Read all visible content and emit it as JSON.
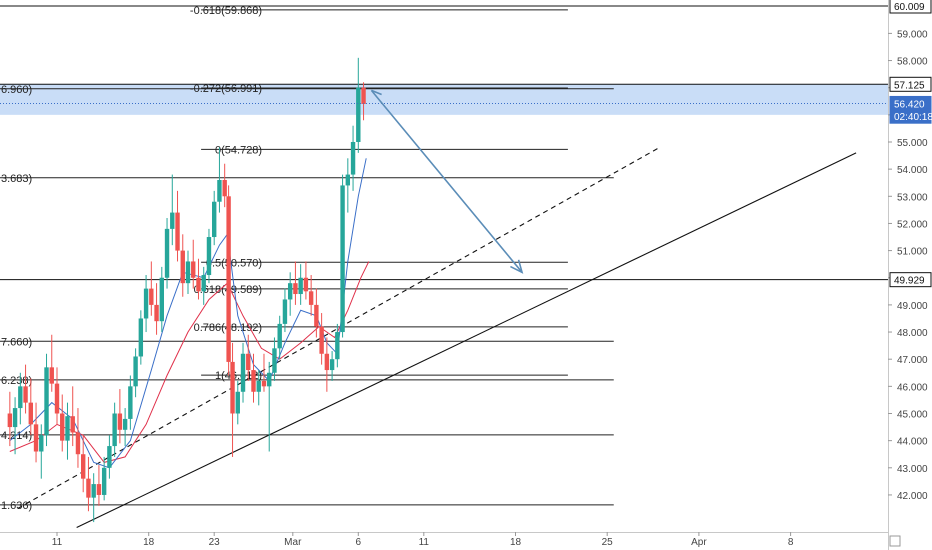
{
  "chart_data": {
    "type": "candlestick",
    "ylim": [
      40.8,
      60.5
    ],
    "y_ticks": [
      "60.009",
      "59.000",
      "58.000",
      "57.000",
      "56.000",
      "55.000",
      "54.000",
      "53.000",
      "52.000",
      "51.000",
      "50.000",
      "49.000",
      "48.000",
      "47.000",
      "46.000",
      "45.000",
      "44.000",
      "43.000",
      "42.000"
    ],
    "x_ticks": [
      {
        "label": "11",
        "day": 11
      },
      {
        "label": "18",
        "day": 18
      },
      {
        "label": "23",
        "day": 23
      },
      {
        "label": "Mar",
        "day": 29
      },
      {
        "label": "6",
        "day": 34
      },
      {
        "label": "11",
        "day": 39
      },
      {
        "label": "18",
        "day": 46
      },
      {
        "label": "25",
        "day": 53
      },
      {
        "label": "Apr",
        "day": 60
      },
      {
        "label": "8",
        "day": 67
      }
    ],
    "x_range": [
      7,
      72
    ],
    "price_labels": [
      {
        "text": "60.009",
        "value": 60.009,
        "style": "outline"
      },
      {
        "text": "57.125",
        "value": 57.125,
        "style": "outline"
      },
      {
        "text": "56.420",
        "value": 56.42,
        "style": "current"
      },
      {
        "text": "02:40:18",
        "value": 55.95,
        "style": "current"
      },
      {
        "text": "49.929",
        "value": 49.929,
        "style": "outline"
      }
    ],
    "horizontal_lines": [
      {
        "value": 60.009,
        "from_day": 7,
        "to_day": 72
      },
      {
        "value": 57.125,
        "from_day": 7,
        "to_day": 72
      },
      {
        "value": 49.929,
        "from_day": 7,
        "to_day": 72
      }
    ],
    "zone": {
      "from": 56.0,
      "to": 57.125
    },
    "current_price": 56.42,
    "fib_levels": [
      {
        "label": "-0.618(59.868)",
        "value": 59.868
      },
      {
        "label": "-0.272(56.991)",
        "value": 56.991
      },
      {
        "label": "0(54.728)",
        "value": 54.728
      },
      {
        "label": "0.5(50.570)",
        "value": 50.57
      },
      {
        "label": "0.618(49.589)",
        "value": 49.589
      },
      {
        "label": "0.786(48.192)",
        "value": 48.192
      },
      {
        "label": "1(46.412)",
        "value": 46.412
      }
    ],
    "fib_from_day": 22,
    "fib_to_day": 50,
    "left_levels": [
      {
        "label": "6.960)",
        "value": 56.96
      },
      {
        "label": "3.683)",
        "value": 53.683
      },
      {
        "label": "7.660)",
        "value": 47.66
      },
      {
        "label": "6.238)",
        "value": 46.238
      },
      {
        "label": "4.214)",
        "value": 44.214
      },
      {
        "label": "1.636)",
        "value": 41.636
      }
    ],
    "left_to_day": 53.5,
    "trendlines": [
      {
        "x1": 12.5,
        "y1": 40.8,
        "x2": 72,
        "y2": 54.6,
        "style": "solid"
      },
      {
        "x1": 8,
        "y1": 41.5,
        "x2": 57,
        "y2": 54.8,
        "style": "dashed"
      }
    ],
    "arrow": {
      "x1": 35,
      "y1": 56.9,
      "x2": 46.5,
      "y2": 50.2
    },
    "candles": [
      {
        "d": 7.4,
        "o": 45.0,
        "h": 45.8,
        "l": 43.8,
        "c": 44.5
      },
      {
        "d": 7.8,
        "o": 44.5,
        "h": 45.6,
        "l": 43.5,
        "c": 45.2
      },
      {
        "d": 8.2,
        "o": 45.2,
        "h": 46.5,
        "l": 44.6,
        "c": 46.0
      },
      {
        "d": 8.6,
        "o": 46.0,
        "h": 46.8,
        "l": 45.0,
        "c": 45.4
      },
      {
        "d": 9.0,
        "o": 45.4,
        "h": 46.3,
        "l": 44.2,
        "c": 44.6
      },
      {
        "d": 9.4,
        "o": 44.6,
        "h": 45.4,
        "l": 43.2,
        "c": 43.6
      },
      {
        "d": 9.8,
        "o": 43.6,
        "h": 44.6,
        "l": 42.6,
        "c": 44.2
      },
      {
        "d": 10.2,
        "o": 44.2,
        "h": 47.2,
        "l": 43.8,
        "c": 46.7
      },
      {
        "d": 10.6,
        "o": 46.7,
        "h": 47.9,
        "l": 45.8,
        "c": 46.1
      },
      {
        "d": 11.0,
        "o": 46.1,
        "h": 46.7,
        "l": 44.6,
        "c": 45.0
      },
      {
        "d": 11.4,
        "o": 45.0,
        "h": 45.7,
        "l": 43.6,
        "c": 44.0
      },
      {
        "d": 11.8,
        "o": 44.0,
        "h": 45.4,
        "l": 43.3,
        "c": 44.9
      },
      {
        "d": 12.2,
        "o": 44.9,
        "h": 46.0,
        "l": 43.8,
        "c": 44.3
      },
      {
        "d": 12.6,
        "o": 44.3,
        "h": 45.2,
        "l": 43.0,
        "c": 43.5
      },
      {
        "d": 13.0,
        "o": 43.5,
        "h": 44.2,
        "l": 42.1,
        "c": 42.6
      },
      {
        "d": 13.4,
        "o": 42.6,
        "h": 43.4,
        "l": 41.4,
        "c": 41.9
      },
      {
        "d": 13.8,
        "o": 41.9,
        "h": 42.8,
        "l": 41.0,
        "c": 42.4
      },
      {
        "d": 14.2,
        "o": 42.4,
        "h": 43.1,
        "l": 41.6,
        "c": 42.0
      },
      {
        "d": 14.6,
        "o": 42.0,
        "h": 43.4,
        "l": 41.8,
        "c": 43.0
      },
      {
        "d": 15.0,
        "o": 43.0,
        "h": 44.2,
        "l": 42.6,
        "c": 43.8
      },
      {
        "d": 15.4,
        "o": 43.8,
        "h": 45.4,
        "l": 43.4,
        "c": 45.0
      },
      {
        "d": 15.8,
        "o": 45.0,
        "h": 45.9,
        "l": 43.9,
        "c": 44.4
      },
      {
        "d": 16.2,
        "o": 44.4,
        "h": 45.2,
        "l": 43.8,
        "c": 44.8
      },
      {
        "d": 16.6,
        "o": 44.8,
        "h": 46.4,
        "l": 44.4,
        "c": 46.0
      },
      {
        "d": 17.0,
        "o": 46.0,
        "h": 47.4,
        "l": 45.6,
        "c": 47.1
      },
      {
        "d": 17.4,
        "o": 47.1,
        "h": 48.8,
        "l": 46.8,
        "c": 48.5
      },
      {
        "d": 17.8,
        "o": 48.5,
        "h": 50.1,
        "l": 48.0,
        "c": 49.6
      },
      {
        "d": 18.2,
        "o": 49.6,
        "h": 50.6,
        "l": 48.6,
        "c": 49.0
      },
      {
        "d": 18.6,
        "o": 49.0,
        "h": 49.8,
        "l": 47.9,
        "c": 48.4
      },
      {
        "d": 19.0,
        "o": 48.4,
        "h": 50.4,
        "l": 48.0,
        "c": 50.0
      },
      {
        "d": 19.4,
        "o": 50.0,
        "h": 52.2,
        "l": 49.6,
        "c": 51.8
      },
      {
        "d": 19.8,
        "o": 51.8,
        "h": 53.8,
        "l": 51.2,
        "c": 52.4
      },
      {
        "d": 20.2,
        "o": 52.4,
        "h": 53.2,
        "l": 50.6,
        "c": 51.0
      },
      {
        "d": 20.6,
        "o": 51.0,
        "h": 51.6,
        "l": 49.3,
        "c": 49.8
      },
      {
        "d": 21.0,
        "o": 49.8,
        "h": 51.0,
        "l": 49.4,
        "c": 50.6
      },
      {
        "d": 21.4,
        "o": 50.6,
        "h": 51.4,
        "l": 49.6,
        "c": 50.0
      },
      {
        "d": 21.8,
        "o": 50.0,
        "h": 50.7,
        "l": 49.2,
        "c": 49.5
      },
      {
        "d": 22.2,
        "o": 49.5,
        "h": 50.4,
        "l": 49.0,
        "c": 50.1
      },
      {
        "d": 22.6,
        "o": 50.1,
        "h": 51.8,
        "l": 49.8,
        "c": 51.5
      },
      {
        "d": 23.0,
        "o": 51.5,
        "h": 53.2,
        "l": 51.2,
        "c": 52.8
      },
      {
        "d": 23.4,
        "o": 52.8,
        "h": 54.8,
        "l": 52.4,
        "c": 53.6
      },
      {
        "d": 23.8,
        "o": 53.6,
        "h": 54.2,
        "l": 52.6,
        "c": 53.0
      },
      {
        "d": 24.1,
        "o": 53.0,
        "h": 53.4,
        "l": 46.4,
        "c": 46.9
      },
      {
        "d": 24.4,
        "o": 46.9,
        "h": 47.6,
        "l": 43.4,
        "c": 45.0
      },
      {
        "d": 24.8,
        "o": 45.0,
        "h": 46.2,
        "l": 44.6,
        "c": 45.8
      },
      {
        "d": 25.2,
        "o": 45.8,
        "h": 47.6,
        "l": 45.4,
        "c": 47.2
      },
      {
        "d": 25.6,
        "o": 47.2,
        "h": 47.9,
        "l": 46.2,
        "c": 46.6
      },
      {
        "d": 26.0,
        "o": 46.6,
        "h": 47.2,
        "l": 45.4,
        "c": 45.8
      },
      {
        "d": 26.4,
        "o": 45.8,
        "h": 46.6,
        "l": 45.3,
        "c": 46.2
      },
      {
        "d": 26.8,
        "o": 46.2,
        "h": 47.2,
        "l": 45.8,
        "c": 46.0
      },
      {
        "d": 27.2,
        "o": 46.0,
        "h": 46.9,
        "l": 43.6,
        "c": 46.5
      },
      {
        "d": 27.6,
        "o": 46.5,
        "h": 47.8,
        "l": 46.2,
        "c": 47.4
      },
      {
        "d": 28.0,
        "o": 47.4,
        "h": 48.6,
        "l": 47.0,
        "c": 48.3
      },
      {
        "d": 28.4,
        "o": 48.3,
        "h": 49.6,
        "l": 48.0,
        "c": 49.2
      },
      {
        "d": 28.8,
        "o": 49.2,
        "h": 50.2,
        "l": 48.6,
        "c": 49.8
      },
      {
        "d": 29.2,
        "o": 49.8,
        "h": 50.6,
        "l": 49.0,
        "c": 49.4
      },
      {
        "d": 29.6,
        "o": 49.4,
        "h": 50.5,
        "l": 49.0,
        "c": 50.0
      },
      {
        "d": 30.0,
        "o": 50.0,
        "h": 50.6,
        "l": 49.2,
        "c": 49.5
      },
      {
        "d": 30.4,
        "o": 49.5,
        "h": 50.1,
        "l": 48.6,
        "c": 49.0
      },
      {
        "d": 30.8,
        "o": 49.0,
        "h": 49.6,
        "l": 47.8,
        "c": 48.2
      },
      {
        "d": 31.2,
        "o": 48.2,
        "h": 48.7,
        "l": 46.8,
        "c": 47.2
      },
      {
        "d": 31.6,
        "o": 47.2,
        "h": 47.8,
        "l": 45.8,
        "c": 46.6
      },
      {
        "d": 32.0,
        "o": 46.6,
        "h": 47.3,
        "l": 46.2,
        "c": 47.0
      },
      {
        "d": 32.4,
        "o": 47.0,
        "h": 48.3,
        "l": 46.7,
        "c": 48.0
      },
      {
        "d": 32.8,
        "o": 48.0,
        "h": 53.8,
        "l": 47.8,
        "c": 53.4
      },
      {
        "d": 33.2,
        "o": 53.4,
        "h": 54.4,
        "l": 52.4,
        "c": 53.8
      },
      {
        "d": 33.6,
        "o": 53.8,
        "h": 55.6,
        "l": 53.2,
        "c": 55.0
      },
      {
        "d": 34.0,
        "o": 55.0,
        "h": 58.1,
        "l": 54.6,
        "c": 57.0
      },
      {
        "d": 34.4,
        "o": 57.0,
        "h": 57.2,
        "l": 55.8,
        "c": 56.4
      }
    ],
    "ma_fast": [
      [
        7.4,
        44.0
      ],
      [
        9.0,
        44.6
      ],
      [
        10.6,
        45.4
      ],
      [
        12.2,
        44.8
      ],
      [
        13.8,
        43.2
      ],
      [
        15.0,
        43.0
      ],
      [
        16.6,
        44.0
      ],
      [
        18.2,
        46.6
      ],
      [
        19.4,
        48.6
      ],
      [
        20.6,
        50.2
      ],
      [
        22.2,
        50.0
      ],
      [
        23.4,
        51.2
      ],
      [
        24.0,
        51.6
      ],
      [
        24.8,
        48.6
      ],
      [
        26.0,
        46.8
      ],
      [
        27.2,
        46.2
      ],
      [
        28.4,
        47.6
      ],
      [
        29.6,
        48.8
      ],
      [
        30.8,
        48.6
      ],
      [
        31.6,
        47.6
      ],
      [
        32.4,
        47.2
      ],
      [
        33.2,
        50.6
      ],
      [
        34.0,
        53.0
      ],
      [
        34.6,
        54.4
      ]
    ],
    "ma_slow": [
      [
        7.4,
        43.6
      ],
      [
        9.4,
        44.0
      ],
      [
        11.0,
        44.6
      ],
      [
        13.0,
        44.2
      ],
      [
        14.6,
        43.2
      ],
      [
        16.2,
        43.4
      ],
      [
        17.8,
        44.6
      ],
      [
        19.4,
        46.4
      ],
      [
        21.0,
        48.0
      ],
      [
        22.6,
        49.2
      ],
      [
        24.0,
        49.8
      ],
      [
        25.2,
        48.6
      ],
      [
        26.6,
        47.4
      ],
      [
        28.0,
        47.0
      ],
      [
        29.6,
        47.6
      ],
      [
        31.0,
        48.2
      ],
      [
        32.2,
        47.8
      ],
      [
        33.2,
        48.8
      ],
      [
        34.2,
        50.0
      ],
      [
        34.8,
        50.6
      ]
    ]
  }
}
